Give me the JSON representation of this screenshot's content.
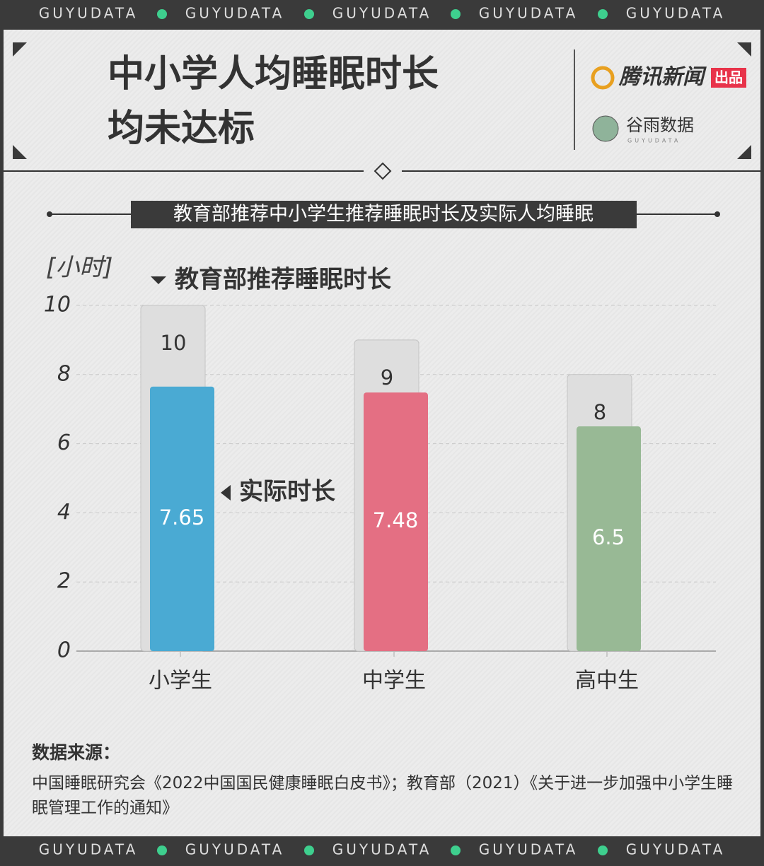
{
  "banner": "GUYUDATA",
  "header": {
    "title": [
      "中小学人均睡眠时长",
      "均未达标"
    ],
    "brand": "腾讯新闻",
    "brand_tag": "出品",
    "logo": "谷雨数据",
    "logo_sub": "GUYUDATA"
  },
  "chart_data": {
    "type": "bar",
    "title": "教育部推荐中小学生推荐睡眠时长及实际人均睡眠",
    "y_label": "[小时]",
    "categories": [
      "小学生",
      "中学生",
      "高中生"
    ],
    "series": [
      {
        "name": "教育部推荐睡眠时长",
        "color": "#dedede",
        "values": [
          10,
          9,
          8
        ]
      },
      {
        "name": "实际时长",
        "colors": [
          "#4aaad3",
          "#e46f83",
          "#98b995"
        ],
        "values": [
          7.65,
          7.48,
          6.5
        ]
      }
    ],
    "ylim": [
      0,
      10
    ],
    "yticks": [
      0,
      2,
      4,
      6,
      8,
      10
    ],
    "grid": true
  },
  "source": {
    "label": "数据来源：",
    "text": "中国睡眠研究会《2022中国国民健康睡眠白皮书》；教育部（2021）《关于进一步加强中小学生睡眠管理工作的通知》"
  }
}
